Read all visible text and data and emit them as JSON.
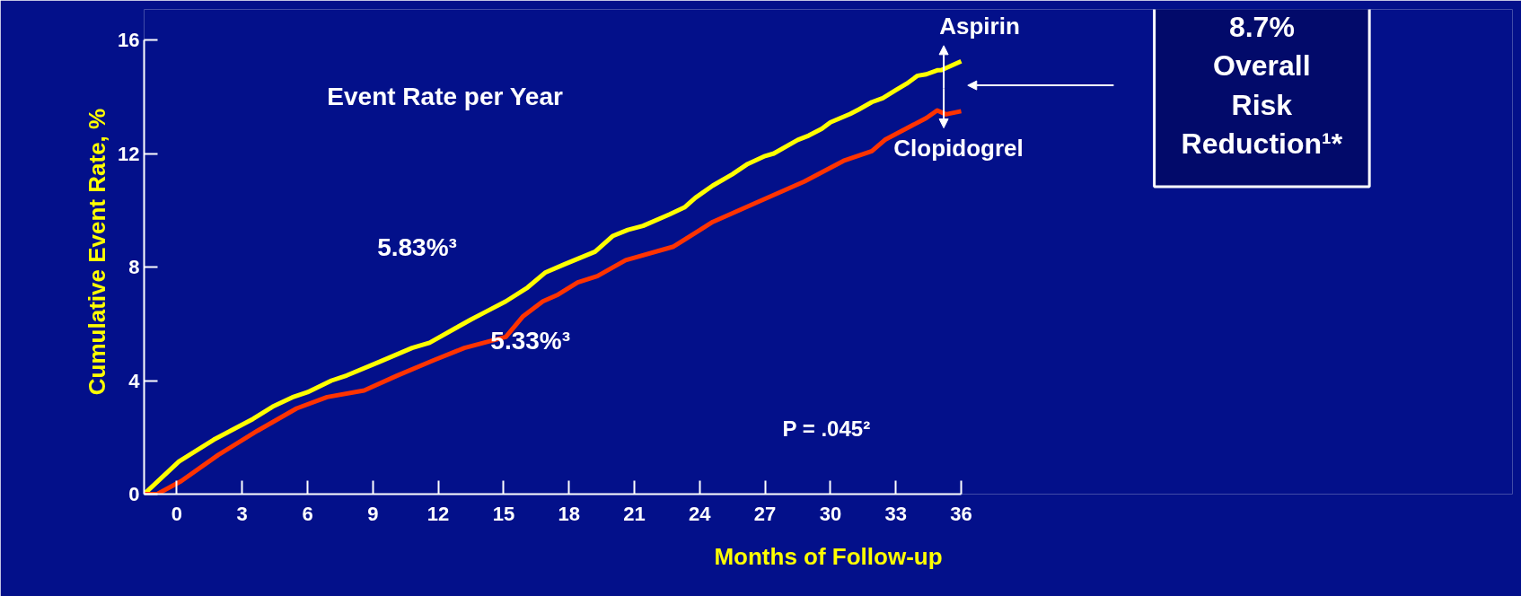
{
  "chart_data": {
    "type": "line",
    "xlabel": "Months of Follow-up",
    "ylabel": "Cumulative Event Rate, %",
    "xlim": [
      -1.5,
      36
    ],
    "xticks": [
      0,
      3,
      6,
      9,
      12,
      15,
      18,
      21,
      24,
      27,
      30,
      33,
      36
    ],
    "ylim": [
      0,
      16
    ],
    "yticks": [
      0,
      4,
      8,
      12,
      16
    ],
    "grid": false,
    "line_style": "solid",
    "series": [
      {
        "name": "Aspirin",
        "color": "#ffff00",
        "x": [
          -1.5,
          0.1,
          1.7,
          3.5,
          4.4,
          5.3,
          6.0,
          7.1,
          7.8,
          9.3,
          10.8,
          11.6,
          12.8,
          13.5,
          14.2,
          15.1,
          16.1,
          16.9,
          17.8,
          19.2,
          20.0,
          20.7,
          21.4,
          22.6,
          23.3,
          23.8,
          24.6,
          25.5,
          26.2,
          27.0,
          27.4,
          28.5,
          29.0,
          29.6,
          30.0,
          30.9,
          31.3,
          31.9,
          32.4,
          33.0,
          33.5,
          34.0,
          34.4,
          34.9,
          35.1,
          36.0
        ],
        "values": [
          0,
          1.15,
          1.92,
          2.65,
          3.08,
          3.41,
          3.59,
          4.0,
          4.18,
          4.66,
          5.15,
          5.33,
          5.85,
          6.15,
          6.43,
          6.79,
          7.28,
          7.8,
          8.1,
          8.54,
          9.09,
          9.31,
          9.45,
          9.85,
          10.1,
          10.44,
          10.87,
          11.27,
          11.63,
          11.91,
          12.0,
          12.48,
          12.63,
          12.87,
          13.1,
          13.39,
          13.55,
          13.81,
          13.95,
          14.23,
          14.46,
          14.74,
          14.79,
          14.93,
          14.94,
          15.25
        ]
      },
      {
        "name": "Clopidogrel",
        "color": "#ff3300",
        "x": [
          -1.5,
          -0.9,
          0.2,
          1.9,
          3.7,
          5.5,
          6.9,
          8.6,
          10.1,
          11.8,
          13.2,
          15.1,
          15.9,
          16.8,
          17.5,
          18.4,
          19.3,
          20.6,
          22.8,
          24.6,
          26.6,
          28.8,
          30.6,
          31.9,
          32.5,
          34.4,
          34.9,
          35.3,
          36.0
        ],
        "values": [
          0,
          0,
          0.46,
          1.38,
          2.23,
          3.02,
          3.42,
          3.65,
          4.17,
          4.72,
          5.15,
          5.54,
          6.27,
          6.79,
          7.03,
          7.46,
          7.68,
          8.24,
          8.72,
          9.59,
          10.27,
          11.01,
          11.74,
          12.08,
          12.48,
          13.25,
          13.52,
          13.38,
          13.49
        ]
      }
    ],
    "annotations": [
      "Event Rate per Year",
      "5.83%³",
      "5.33%³",
      "P = .045²",
      "8.7%\nOverall\nRisk\nReduction¹*"
    ]
  }
}
